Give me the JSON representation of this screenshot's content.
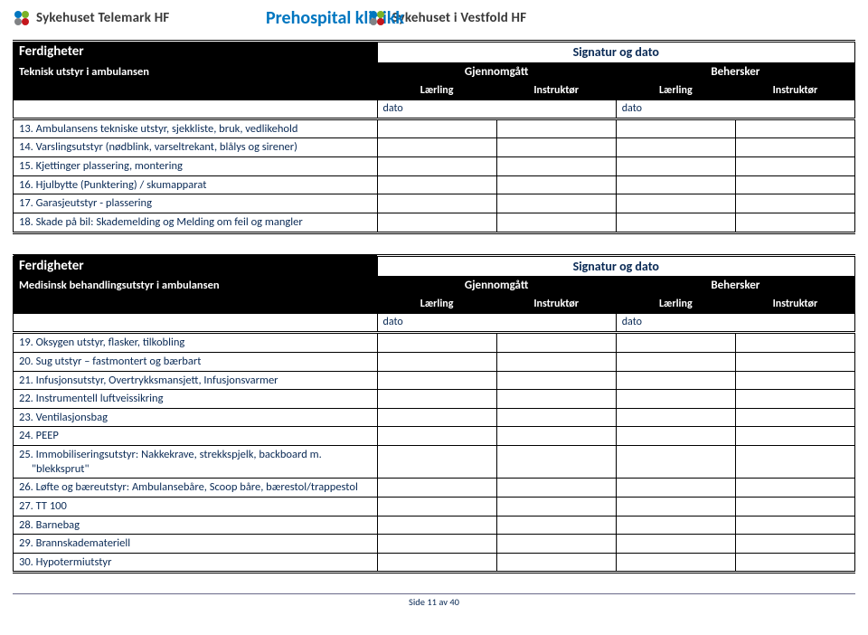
{
  "header": {
    "logo_left_text": "Sykehuset Telemark HF",
    "center_title": "Prehospital klinikk",
    "logo_right_text": "Sykehuset i Vestfold HF"
  },
  "logo_colors": {
    "blue": "#0076c0",
    "green": "#7bb228",
    "red": "#c4161c",
    "grey": "#808285"
  },
  "labels": {
    "ferdigheter": "Ferdigheter",
    "signatur_og_dato": "Signatur og dato",
    "gjennomgatt": "Gjennomgått",
    "behersker": "Behersker",
    "laerling": "Lærling",
    "instruktor": "Instruktør",
    "dato": "dato"
  },
  "table1": {
    "section_title": "Teknisk utstyr i ambulansen",
    "rows": [
      "13. Ambulansens tekniske utstyr, sjekkliste, bruk, vedlikehold",
      "14. Varslingsutstyr (nødblink, varseltrekant, blålys og sirener)",
      "15. Kjettinger plassering, montering",
      "16. Hjulbytte (Punktering) / skumapparat",
      "17. Garasjeutstyr - plassering",
      "18. Skade på bil: Skademelding og Melding om feil og mangler"
    ]
  },
  "table2": {
    "section_title": "Medisinsk behandlingsutstyr i ambulansen",
    "rows": [
      "19. Oksygen utstyr, flasker, tilkobling",
      "20. Sug utstyr – fastmontert og bærbart",
      "21. Infusjonsutstyr, Overtrykksmansjett, Infusjonsvarmer",
      "22. Instrumentell luftveissikring",
      "23. Ventilasjonsbag",
      "24. PEEP",
      "25. Immobiliseringsutstyr: Nakkekrave, strekkspjelk, backboard m. \"blekksprut\"",
      "26. Løfte og bæreutstyr: Ambulansebåre, Scoop båre, bærestol/trappestol",
      "27. TT 100",
      "28. Barnebag",
      "29. Brannskademateriell",
      "30. Hypotermiutstyr"
    ]
  },
  "footer": {
    "page_label": "Side 11 av 40"
  }
}
